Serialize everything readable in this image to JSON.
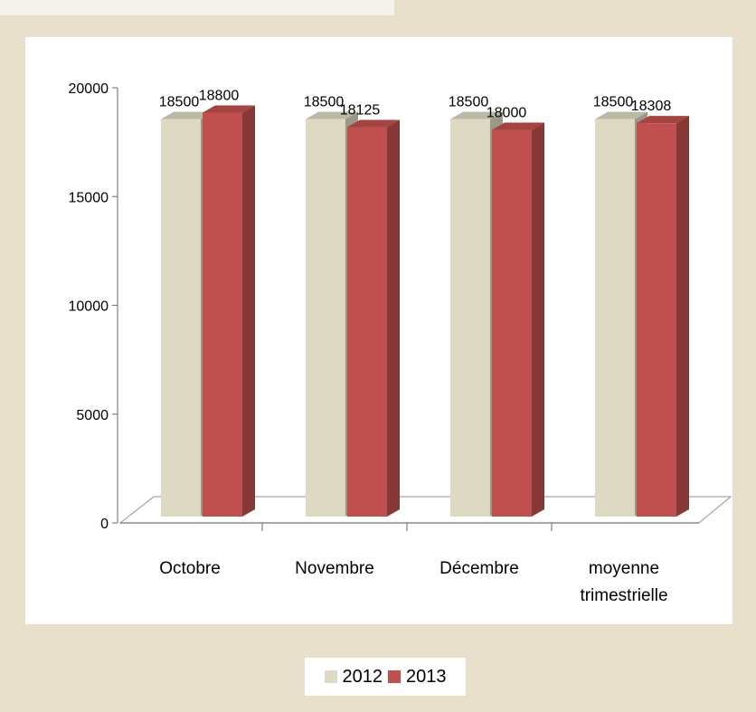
{
  "chart_data": {
    "type": "bar",
    "categories": [
      "Octobre",
      "Novembre",
      "Décembre",
      "moyenne trimestrielle"
    ],
    "series": [
      {
        "name": "2012",
        "values": [
          18500,
          18500,
          18500,
          18500
        ],
        "color": "#ddd9c3"
      },
      {
        "name": "2013",
        "values": [
          18800,
          18125,
          18000,
          18308
        ],
        "color": "#c0504d"
      }
    ],
    "yticks": [
      0,
      5000,
      10000,
      15000,
      20000
    ],
    "ylim": [
      0,
      20000
    ],
    "grid": false,
    "legend_position": "bottom",
    "style": "3d-column"
  }
}
